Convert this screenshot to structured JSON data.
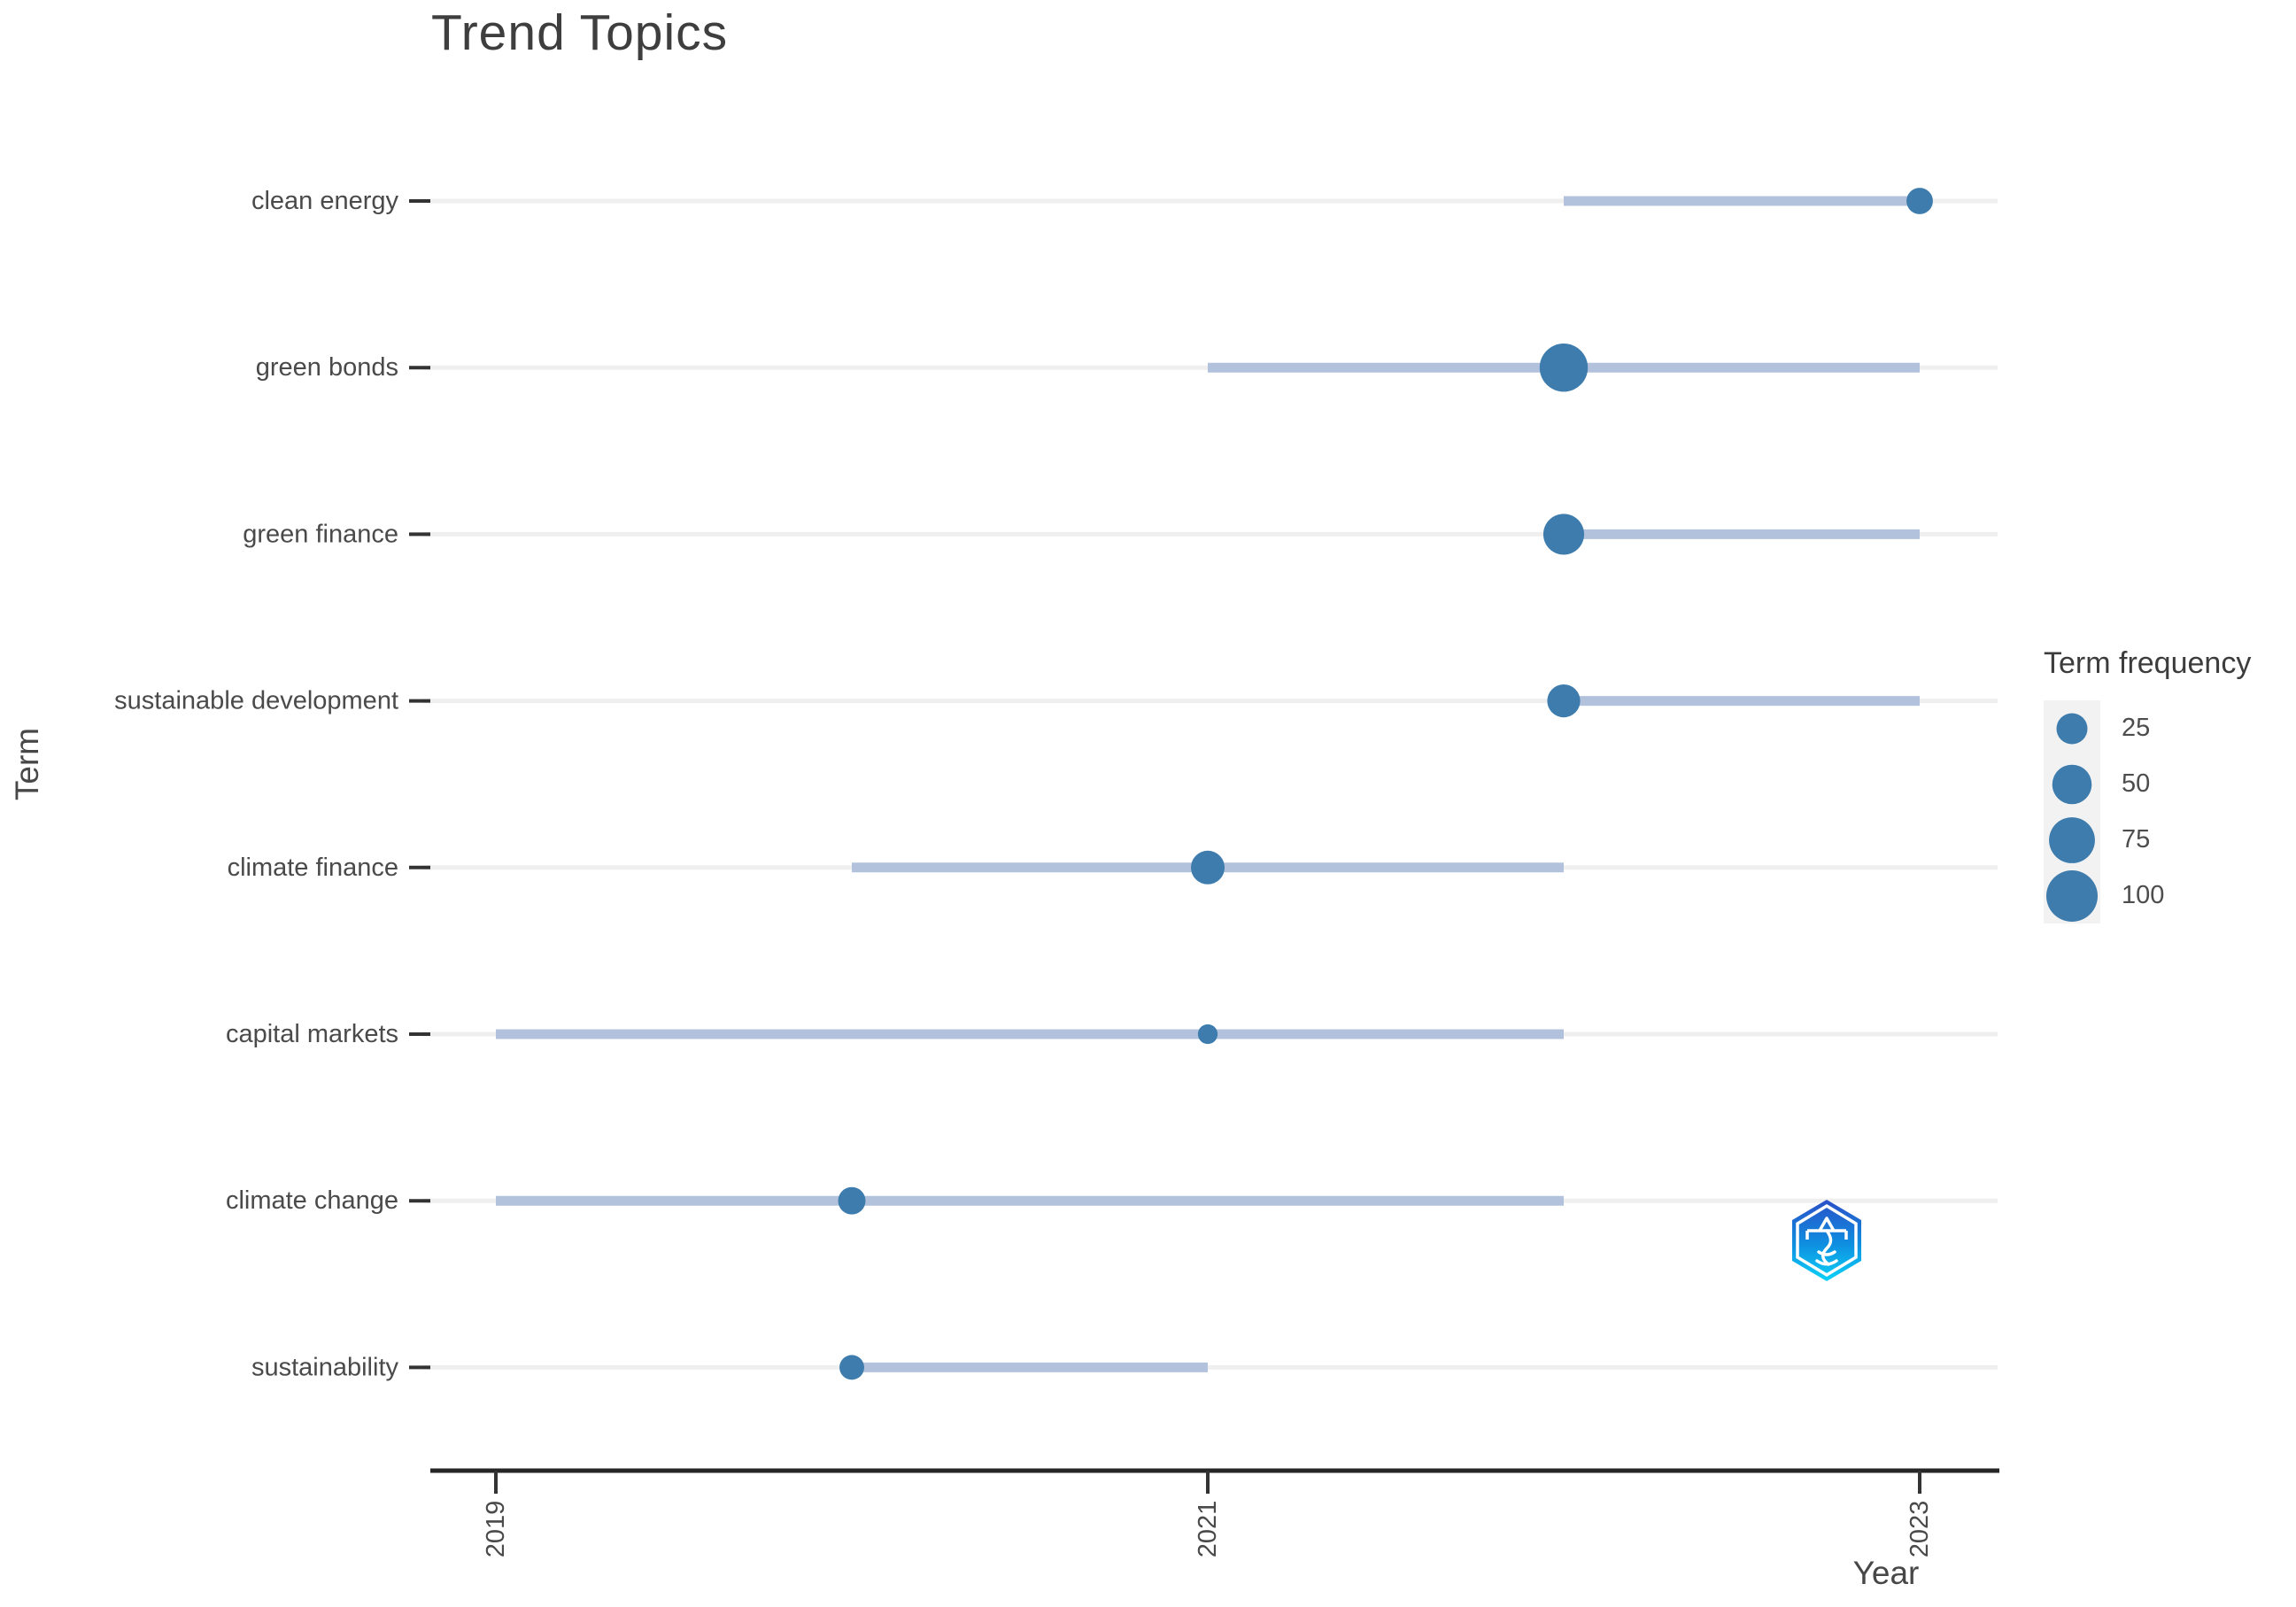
{
  "title": "Trend Topics",
  "axes": {
    "x_label": "Year",
    "y_label": "Term"
  },
  "legend": {
    "title": "Term frequency",
    "breaks": [
      25,
      50,
      75,
      100
    ]
  },
  "watermark": "hexagon-badge-logo",
  "chart_data": {
    "type": "scatter",
    "subtype": "dot-range-lollipop",
    "title": "Trend Topics",
    "xlabel": "Year",
    "ylabel": "Term",
    "x_ticks": [
      2019,
      2021,
      2023
    ],
    "xlim": [
      2018.8,
      2023.22
    ],
    "legend": {
      "title": "Term frequency",
      "breaks": [
        25,
        50,
        75,
        100
      ]
    },
    "series": [
      {
        "term": "clean energy",
        "year_start": 2022,
        "year_end": 2023,
        "year_peak": 2023,
        "frequency": 15
      },
      {
        "term": "green bonds",
        "year_start": 2021,
        "year_end": 2023,
        "year_peak": 2022,
        "frequency": 85
      },
      {
        "term": "green finance",
        "year_start": 2022,
        "year_end": 2023,
        "year_peak": 2022,
        "frequency": 55
      },
      {
        "term": "sustainable development",
        "year_start": 2022,
        "year_end": 2023,
        "year_peak": 2022,
        "frequency": 30
      },
      {
        "term": "climate finance",
        "year_start": 2020,
        "year_end": 2022,
        "year_peak": 2021,
        "frequency": 32
      },
      {
        "term": "capital markets",
        "year_start": 2019,
        "year_end": 2022,
        "year_peak": 2021,
        "frequency": 5
      },
      {
        "term": "climate change",
        "year_start": 2019,
        "year_end": 2022,
        "year_peak": 2020,
        "frequency": 17
      },
      {
        "term": "sustainability",
        "year_start": 2020,
        "year_end": 2021,
        "year_peak": 2020,
        "frequency": 12
      }
    ],
    "colors": {
      "dot": "#3d7cad",
      "range_line": "#b3c2dc",
      "gridline": "#efefef",
      "axis_line": "#262626",
      "tick": "#333333",
      "tick_text": "#4a4a4a",
      "title_text": "#3e3e3e"
    },
    "grid": "horizontal-only",
    "legend_position": "right"
  }
}
